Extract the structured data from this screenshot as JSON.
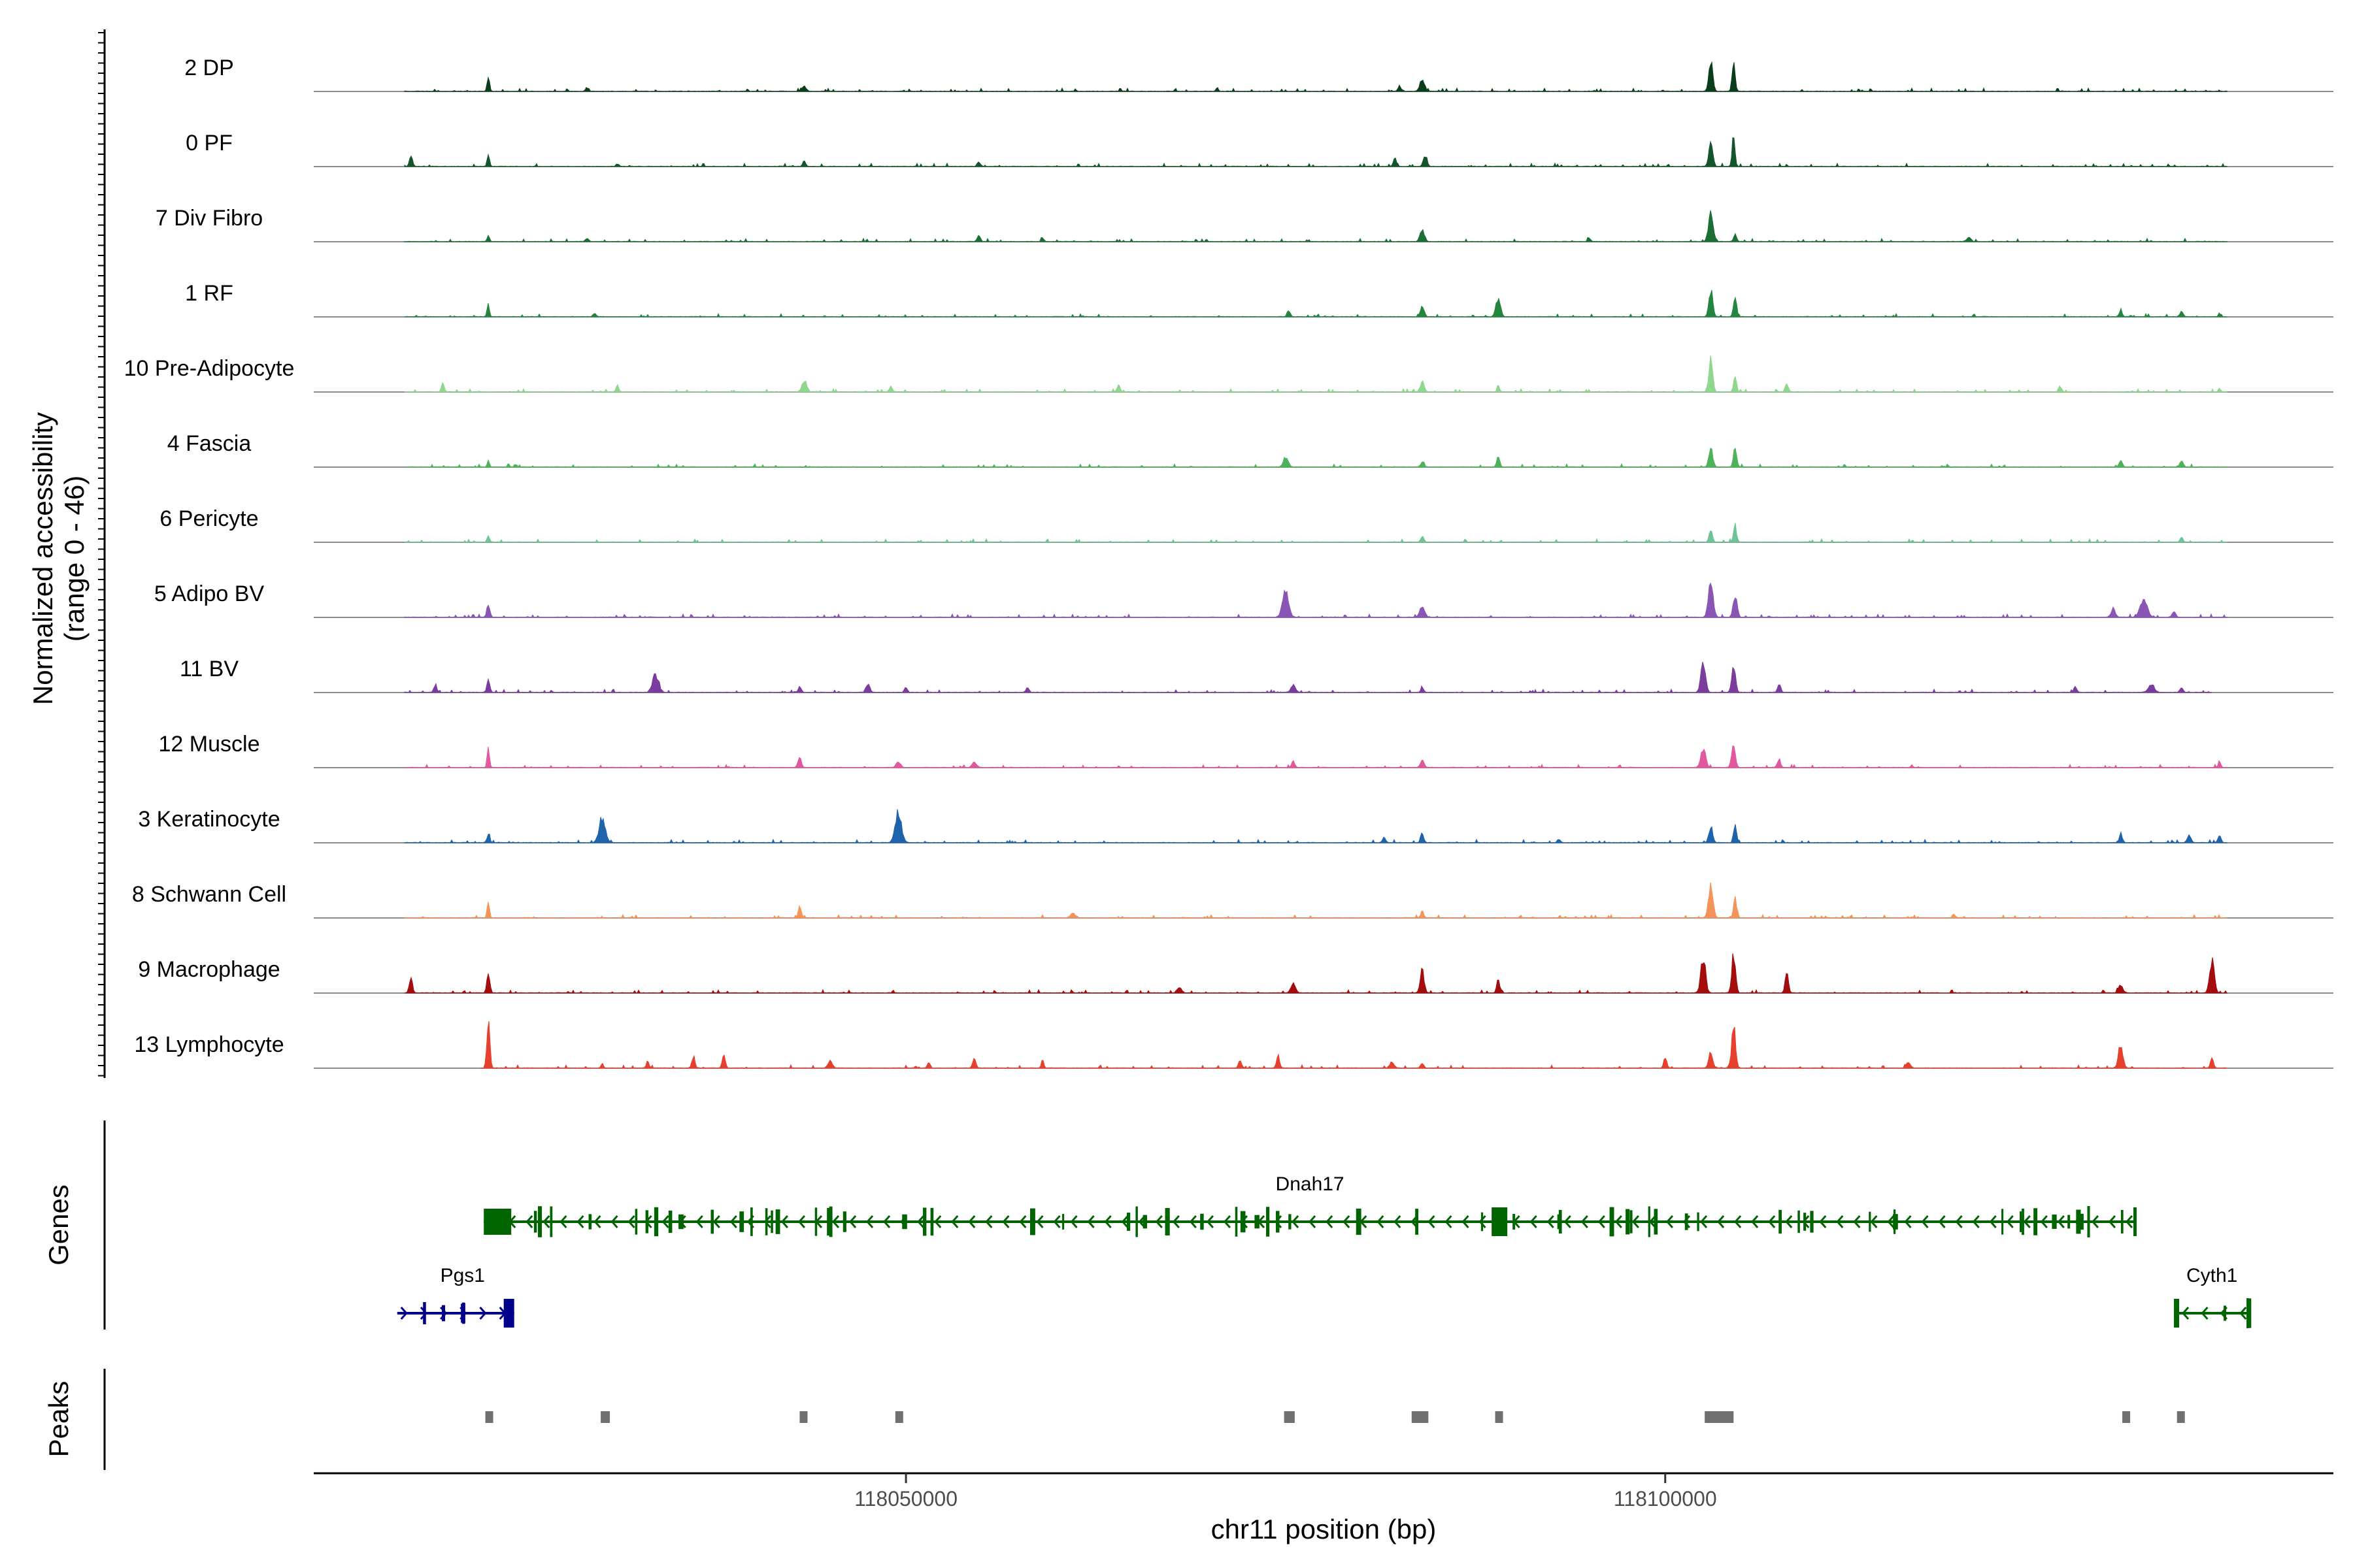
{
  "chart_data": {
    "type": "area",
    "xlabel": "chr11 position (bp)",
    "ylabel": "Normalized accessibility",
    "ylabel_sub": "(range 0 - 46)",
    "yrange": [
      0,
      46
    ],
    "xlim": [
      118011000,
      118144000
    ],
    "x_ticks": [
      118050000,
      118100000
    ],
    "x_tick_labels": [
      "118050000",
      "118100000"
    ],
    "grid": false,
    "legend": "none",
    "panels": {
      "genes": "Genes",
      "peaks": "Peaks"
    },
    "tracks": [
      {
        "name": "2 DP",
        "color": "#0b3d1a",
        "range": [
          118017000,
          118137000
        ],
        "peaks": [
          [
            118022500,
            8.5,
            150
          ],
          [
            118043300,
            3,
            250
          ],
          [
            118084000,
            7,
            300
          ],
          [
            118082500,
            3,
            200
          ],
          [
            118103000,
            17,
            250
          ],
          [
            118104500,
            15,
            200
          ],
          [
            118070500,
            2,
            150
          ],
          [
            118029000,
            2,
            200
          ]
        ]
      },
      {
        "name": "0 PF",
        "color": "#14552b",
        "range": [
          118017000,
          118137000
        ],
        "peaks": [
          [
            118017400,
            6,
            200
          ],
          [
            118022500,
            8,
            150
          ],
          [
            118043300,
            3,
            200
          ],
          [
            118054800,
            2.5,
            200
          ],
          [
            118082200,
            5,
            200
          ],
          [
            118084200,
            6,
            250
          ],
          [
            118103000,
            14,
            250
          ],
          [
            118104500,
            17,
            180
          ],
          [
            118031000,
            1.5,
            200
          ]
        ]
      },
      {
        "name": "7 Div Fibro",
        "color": "#1b6e34",
        "range": [
          118017000,
          118137000
        ],
        "peaks": [
          [
            118022500,
            3,
            150
          ],
          [
            118029000,
            2,
            200
          ],
          [
            118054800,
            3.5,
            200
          ],
          [
            118059000,
            2,
            200
          ],
          [
            118084000,
            6,
            300
          ],
          [
            118103000,
            17,
            300
          ],
          [
            118104600,
            4,
            200
          ],
          [
            118095000,
            2,
            200
          ],
          [
            118120000,
            2,
            300
          ]
        ]
      },
      {
        "name": "1 RF",
        "color": "#23853f",
        "range": [
          118017000,
          118137000
        ],
        "peaks": [
          [
            118022500,
            7,
            150
          ],
          [
            118029500,
            2,
            200
          ],
          [
            118075200,
            3.5,
            200
          ],
          [
            118084000,
            5.5,
            250
          ],
          [
            118089000,
            10,
            300
          ],
          [
            118103000,
            15,
            250
          ],
          [
            118104600,
            11,
            200
          ],
          [
            118130000,
            3,
            200
          ],
          [
            118134000,
            3,
            200
          ],
          [
            118136500,
            2,
            150
          ]
        ]
      },
      {
        "name": "10 Pre-Adipocyte",
        "color": "#8fd68f",
        "range": [
          118017000,
          118137000
        ],
        "peaks": [
          [
            118019500,
            4,
            200
          ],
          [
            118031000,
            3,
            200
          ],
          [
            118043300,
            6,
            300
          ],
          [
            118049000,
            3,
            200
          ],
          [
            118064000,
            4,
            200
          ],
          [
            118084000,
            6,
            250
          ],
          [
            118089000,
            4,
            150
          ],
          [
            118103000,
            18,
            250
          ],
          [
            118104600,
            8,
            200
          ],
          [
            118108000,
            5,
            200
          ],
          [
            118126000,
            3,
            200
          ],
          [
            118136500,
            2,
            150
          ]
        ]
      },
      {
        "name": "4 Fascia",
        "color": "#4cb35a",
        "range": [
          118017000,
          118137000
        ],
        "peaks": [
          [
            118022500,
            3,
            150
          ],
          [
            118075000,
            5.5,
            300
          ],
          [
            118084000,
            3,
            200
          ],
          [
            118089000,
            6,
            200
          ],
          [
            118103000,
            11,
            250
          ],
          [
            118104600,
            11,
            200
          ],
          [
            118130000,
            4,
            200
          ],
          [
            118134000,
            4,
            200
          ]
        ]
      },
      {
        "name": "6 Pericyte",
        "color": "#6cc497",
        "range": [
          118017000,
          118137000
        ],
        "peaks": [
          [
            118022500,
            4,
            150
          ],
          [
            118084000,
            3.5,
            200
          ],
          [
            118103000,
            7,
            200
          ],
          [
            118104600,
            9,
            200
          ],
          [
            118134000,
            3,
            200
          ]
        ]
      },
      {
        "name": "5 Adipo BV",
        "color": "#8a56b5",
        "range": [
          118017000,
          118137000
        ],
        "peaks": [
          [
            118022500,
            7,
            200
          ],
          [
            118075000,
            14,
            400
          ],
          [
            118084000,
            6.5,
            300
          ],
          [
            118103000,
            22,
            300
          ],
          [
            118104600,
            12,
            250
          ],
          [
            118129500,
            4,
            300
          ],
          [
            118131500,
            10,
            450
          ],
          [
            118133500,
            3,
            250
          ]
        ]
      },
      {
        "name": "11 BV",
        "color": "#7a3c9d",
        "range": [
          118017000,
          118136000
        ],
        "peaks": [
          [
            118019000,
            4,
            200
          ],
          [
            118022500,
            7,
            200
          ],
          [
            118033500,
            10,
            400
          ],
          [
            118043000,
            3,
            200
          ],
          [
            118047500,
            5,
            250
          ],
          [
            118050000,
            3,
            200
          ],
          [
            118058000,
            2.5,
            200
          ],
          [
            118075500,
            4,
            300
          ],
          [
            118084000,
            3,
            200
          ],
          [
            118102500,
            17,
            300
          ],
          [
            118104500,
            14,
            250
          ],
          [
            118107500,
            4,
            200
          ],
          [
            118127000,
            3,
            200
          ],
          [
            118132000,
            4,
            400
          ],
          [
            118134000,
            3,
            200
          ]
        ]
      },
      {
        "name": "12 Muscle",
        "color": "#e1589e",
        "range": [
          118017000,
          118137000
        ],
        "peaks": [
          [
            118022500,
            12,
            150
          ],
          [
            118043000,
            6,
            200
          ],
          [
            118049500,
            3,
            300
          ],
          [
            118054500,
            3,
            250
          ],
          [
            118075500,
            4,
            200
          ],
          [
            118084000,
            4,
            250
          ],
          [
            118102500,
            11,
            300
          ],
          [
            118104500,
            13,
            250
          ],
          [
            118107500,
            4,
            200
          ],
          [
            118136500,
            4,
            150
          ]
        ]
      },
      {
        "name": "3 Keratinocyte",
        "color": "#1f63ad",
        "range": [
          118017000,
          118137000
        ],
        "peaks": [
          [
            118022500,
            4,
            200
          ],
          [
            118030000,
            14,
            400
          ],
          [
            118049500,
            16,
            400
          ],
          [
            118081500,
            3,
            200
          ],
          [
            118084000,
            4,
            200
          ],
          [
            118093000,
            2,
            200
          ],
          [
            118103000,
            9,
            250
          ],
          [
            118104600,
            9,
            200
          ],
          [
            118130000,
            5,
            200
          ],
          [
            118134500,
            4,
            250
          ],
          [
            118136500,
            4,
            200
          ]
        ]
      },
      {
        "name": "8 Schwann Cell",
        "color": "#f4945a",
        "range": [
          118017000,
          118137000
        ],
        "peaks": [
          [
            118022500,
            10,
            150
          ],
          [
            118043000,
            6,
            200
          ],
          [
            118061000,
            3,
            300
          ],
          [
            118084000,
            3.5,
            200
          ],
          [
            118103000,
            17,
            300
          ],
          [
            118104600,
            12,
            200
          ],
          [
            118119000,
            2,
            200
          ]
        ]
      },
      {
        "name": "9 Macrophage",
        "color": "#a30d0d",
        "range": [
          118017000,
          118137000
        ],
        "peaks": [
          [
            118017400,
            9,
            200
          ],
          [
            118022500,
            11,
            200
          ],
          [
            118075500,
            5,
            300
          ],
          [
            118084000,
            13,
            250
          ],
          [
            118089000,
            7,
            200
          ],
          [
            118102500,
            20,
            300
          ],
          [
            118104500,
            21,
            250
          ],
          [
            118108000,
            12,
            200
          ],
          [
            118136000,
            18,
            300
          ],
          [
            118130000,
            4,
            300
          ],
          [
            118068000,
            3,
            300
          ]
        ]
      },
      {
        "name": "13 Lymphocyte",
        "color": "#e6402e",
        "range": [
          118022000,
          118137000
        ],
        "peaks": [
          [
            118022500,
            26,
            200
          ],
          [
            118030000,
            3,
            150
          ],
          [
            118033000,
            3,
            200
          ],
          [
            118036000,
            6,
            200
          ],
          [
            118038000,
            8,
            200
          ],
          [
            118045000,
            4,
            300
          ],
          [
            118051500,
            3,
            200
          ],
          [
            118054500,
            6,
            200
          ],
          [
            118059000,
            5,
            150
          ],
          [
            118072000,
            4,
            200
          ],
          [
            118074500,
            7,
            200
          ],
          [
            118082000,
            3,
            300
          ],
          [
            118084000,
            3,
            200
          ],
          [
            118100000,
            6,
            200
          ],
          [
            118103000,
            9,
            250
          ],
          [
            118104500,
            24,
            250
          ],
          [
            118116000,
            3,
            300
          ],
          [
            118130000,
            12,
            300
          ],
          [
            118136000,
            6,
            200
          ]
        ]
      }
    ],
    "genes": [
      {
        "name": "Dnah17",
        "strand": "-",
        "start": 118022200,
        "end": 118131000,
        "color": "#006400",
        "row": 0
      },
      {
        "name": "Pgs1",
        "strand": "+",
        "start": 118016500,
        "end": 118024200,
        "color": "#00008b",
        "row": 1
      },
      {
        "name": "Cyth1",
        "strand": "-",
        "start": 118133500,
        "end": 118138500,
        "color": "#006400",
        "row": 1
      }
    ],
    "peak_regions": [
      [
        118022300,
        118022800
      ],
      [
        118029900,
        118030500
      ],
      [
        118043000,
        118043400
      ],
      [
        118049300,
        118049800
      ],
      [
        118074900,
        118075600
      ],
      [
        118083300,
        118084400
      ],
      [
        118088800,
        118089300
      ],
      [
        118102600,
        118104500
      ],
      [
        118130100,
        118130500
      ],
      [
        118133700,
        118134200
      ]
    ],
    "peak_color": "#707070"
  }
}
